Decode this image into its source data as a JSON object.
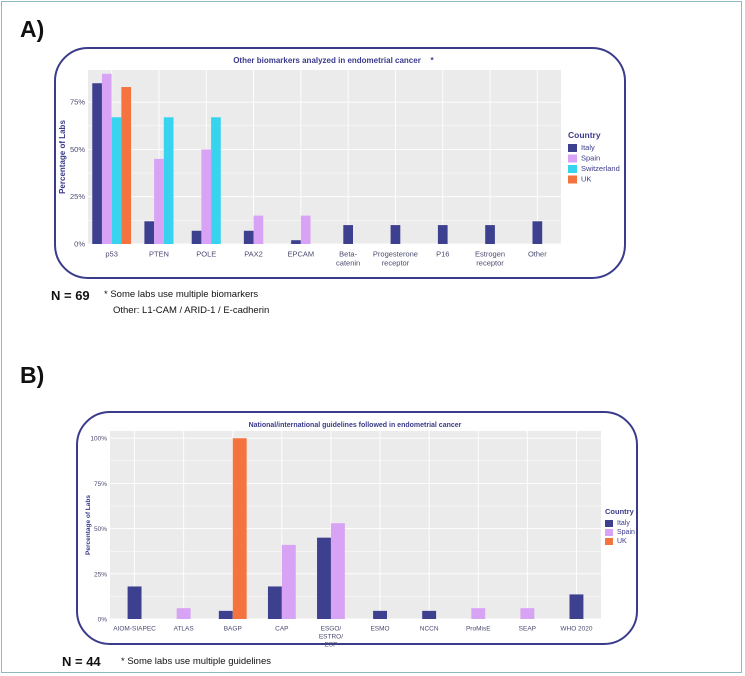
{
  "panels": [
    {
      "letter": "A)",
      "n_label": "N = 69",
      "footnote": "* Some labs use multiple biomarkers",
      "footnote2": "Other: L1-CAM / ARID-1 / E-cadherin"
    },
    {
      "letter": "B)",
      "n_label": "N = 44",
      "footnote": "* Some labs use multiple guidelines",
      "footnote2": ""
    }
  ],
  "colors": {
    "Italy": "#3d3f8f",
    "Spain": "#d9a3f5",
    "Switzerland": "#37d3ef",
    "UK": "#f4733f",
    "panel_bg": "#ebebeb",
    "grid": "#ffffff",
    "border": "#3b3b8c"
  },
  "chart_data": [
    {
      "type": "bar",
      "title": "Other biomarkers analyzed in endometrial cancer",
      "title_marker": "*",
      "ylabel": "Percentage of Labs",
      "xlabel": "",
      "ylim": [
        0,
        0.92
      ],
      "yticks": [
        0,
        0.25,
        0.5,
        0.75
      ],
      "ytick_labels": [
        "0%",
        "25%",
        "50%",
        "75%"
      ],
      "grid": true,
      "legend_title": "Country",
      "legend_position": "right",
      "categories": [
        "p53",
        "PTEN",
        "POLE",
        "PAX2",
        "EPCAM",
        "Beta-\ncatenin",
        "Progesterone\nreceptor",
        "P16",
        "Estrogen\nreceptor",
        "Other"
      ],
      "series": [
        {
          "name": "Italy",
          "values": [
            0.85,
            0.12,
            0.07,
            0.07,
            0.02,
            0.1,
            0.1,
            0.1,
            0.1,
            0.12
          ]
        },
        {
          "name": "Spain",
          "values": [
            0.9,
            0.45,
            0.5,
            0.15,
            0.15,
            null,
            null,
            null,
            null,
            null
          ]
        },
        {
          "name": "Switzerland",
          "values": [
            0.67,
            0.67,
            0.67,
            null,
            null,
            null,
            null,
            null,
            null,
            null
          ]
        },
        {
          "name": "UK",
          "values": [
            0.83,
            null,
            null,
            null,
            null,
            null,
            null,
            null,
            null,
            null
          ]
        }
      ]
    },
    {
      "type": "bar",
      "title": "National/international guidelines followed in endometrial cancer",
      "title_marker": "",
      "ylabel": "Percentage of Labs",
      "xlabel": "",
      "ylim": [
        0,
        1.04
      ],
      "yticks": [
        0,
        0.25,
        0.5,
        0.75,
        1.0
      ],
      "ytick_labels": [
        "0%",
        "25%",
        "50%",
        "75%",
        "100%"
      ],
      "grid": true,
      "legend_title": "Country",
      "legend_position": "right",
      "categories": [
        "AIOM-SIAPEC",
        "ATLAS",
        "BAGP",
        "CAP",
        "ESGO/\nESTRO/\nESP",
        "ESMO",
        "NCCN",
        "ProMisE",
        "SEAP",
        "WHO 2020"
      ],
      "series": [
        {
          "name": "Italy",
          "values": [
            0.18,
            null,
            0.045,
            0.18,
            0.45,
            0.045,
            0.045,
            null,
            null,
            0.136
          ]
        },
        {
          "name": "Spain",
          "values": [
            null,
            0.06,
            null,
            0.41,
            0.53,
            null,
            null,
            0.06,
            0.06,
            null
          ]
        },
        {
          "name": "UK",
          "values": [
            null,
            null,
            1.0,
            null,
            null,
            null,
            null,
            null,
            null,
            null
          ]
        }
      ]
    }
  ]
}
